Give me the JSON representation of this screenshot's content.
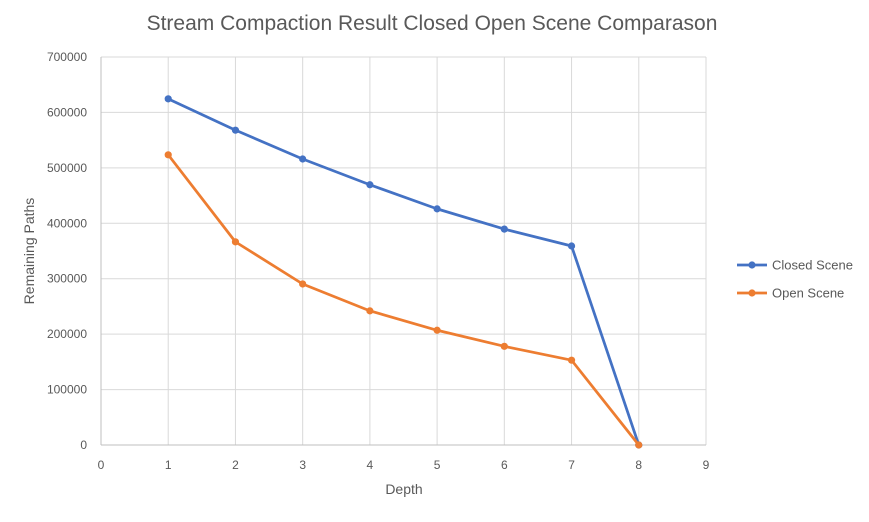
{
  "chart_data": {
    "type": "line",
    "title": "Stream Compaction Result Closed Open Scene Comparason",
    "xlabel": "Depth",
    "ylabel": "Remaining Paths",
    "xlim": [
      0,
      9
    ],
    "ylim": [
      0,
      700000
    ],
    "x_ticks": [
      "0",
      "1",
      "2",
      "3",
      "4",
      "5",
      "6",
      "7",
      "8",
      "9"
    ],
    "y_ticks": [
      "0",
      "100000",
      "200000",
      "300000",
      "400000",
      "500000",
      "600000",
      "700000"
    ],
    "x": [
      1,
      2,
      3,
      4,
      5,
      6,
      7,
      8
    ],
    "grid": true,
    "legend_position": "right",
    "series": [
      {
        "name": "Closed Scene",
        "color": "#4472C4",
        "values": [
          624500,
          568000,
          516000,
          469500,
          426000,
          389500,
          359000,
          0
        ]
      },
      {
        "name": "Open Scene",
        "color": "#ED7D31",
        "values": [
          523500,
          366500,
          290500,
          242000,
          207000,
          178000,
          153000,
          0
        ]
      }
    ]
  }
}
